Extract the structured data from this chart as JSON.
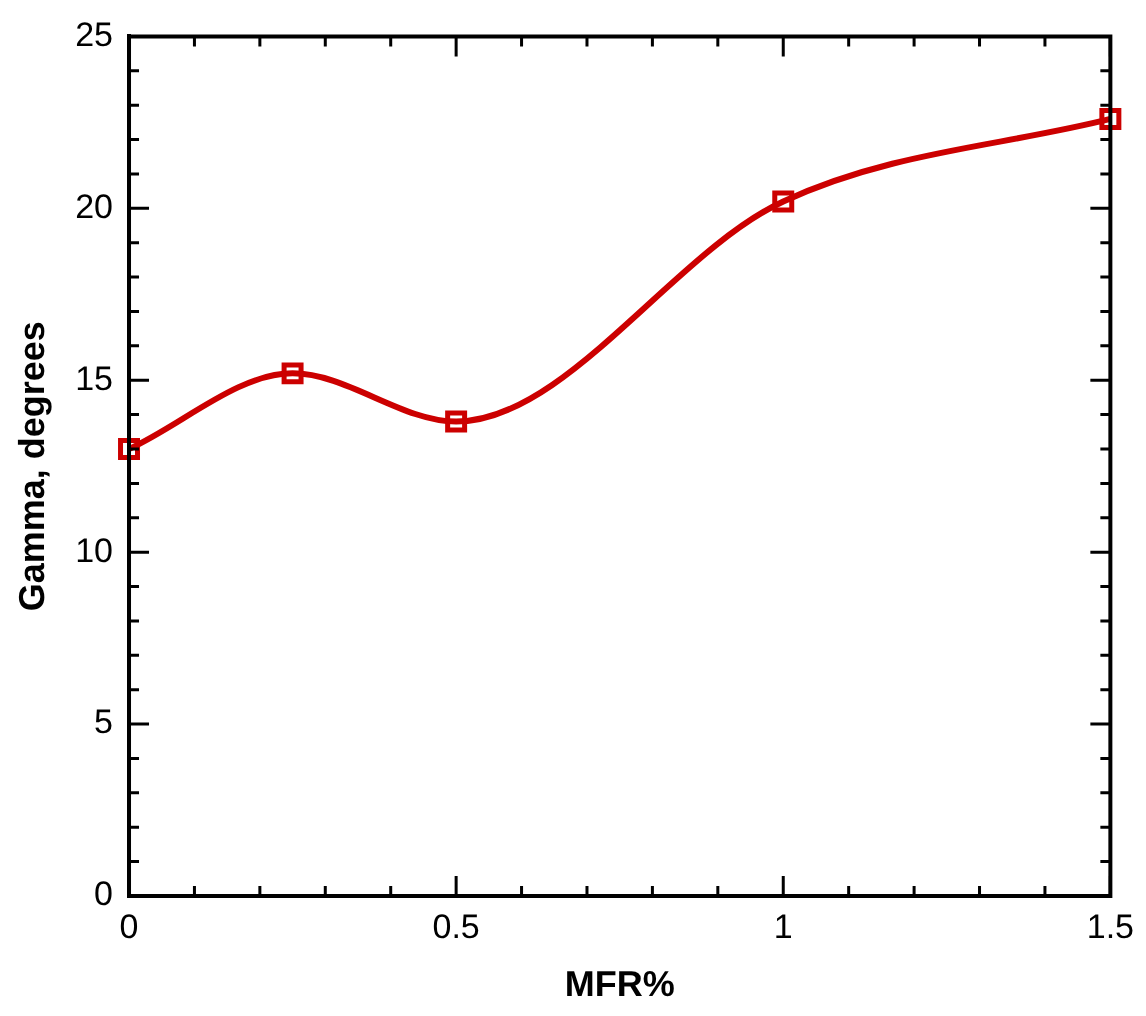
{
  "chart_data": {
    "type": "line",
    "xlabel": "MFR%",
    "ylabel": "Gamma, degrees",
    "x": [
      0,
      0.25,
      0.5,
      1,
      1.5
    ],
    "series": [
      {
        "color": "#cc0000",
        "values": [
          13.0,
          15.2,
          13.8,
          20.2,
          22.6
        ]
      }
    ],
    "xlim": [
      0,
      1.5
    ],
    "ylim": [
      0,
      25
    ],
    "xticks": [
      0,
      {
        "value": 0.1,
        "label": null
      },
      {
        "value": 0.2,
        "label": null
      },
      {
        "value": 0.3,
        "label": null
      },
      {
        "value": 0.4,
        "label": null
      },
      0.5,
      {
        "value": 0.6,
        "label": null
      },
      {
        "value": 0.7,
        "label": null
      },
      {
        "value": 0.8,
        "label": null
      },
      {
        "value": 0.9,
        "label": null
      },
      1,
      {
        "value": 1.1,
        "label": null
      },
      {
        "value": 1.2,
        "label": null
      },
      {
        "value": 1.3,
        "label": null
      },
      {
        "value": 1.4,
        "label": null
      },
      1.5
    ],
    "yticks": [
      0,
      {
        "value": 1,
        "label": null
      },
      {
        "value": 2,
        "label": null
      },
      {
        "value": 3,
        "label": null
      },
      {
        "value": 4,
        "label": null
      },
      5,
      {
        "value": 6,
        "label": null
      },
      {
        "value": 7,
        "label": null
      },
      {
        "value": 8,
        "label": null
      },
      {
        "value": 9,
        "label": null
      },
      10,
      {
        "value": 11,
        "label": null
      },
      {
        "value": 12,
        "label": null
      },
      {
        "value": 13,
        "label": null
      },
      {
        "value": 14,
        "label": null
      },
      15,
      {
        "value": 16,
        "label": null
      },
      {
        "value": 17,
        "label": null
      },
      {
        "value": 18,
        "label": null
      },
      {
        "value": 19,
        "label": null
      },
      20,
      {
        "value": 21,
        "label": null
      },
      {
        "value": 22,
        "label": null
      },
      {
        "value": 23,
        "label": null
      },
      {
        "value": 24,
        "label": null
      },
      25
    ],
    "grid": false,
    "legend": false,
    "marker": "square",
    "line_style": "solid"
  }
}
